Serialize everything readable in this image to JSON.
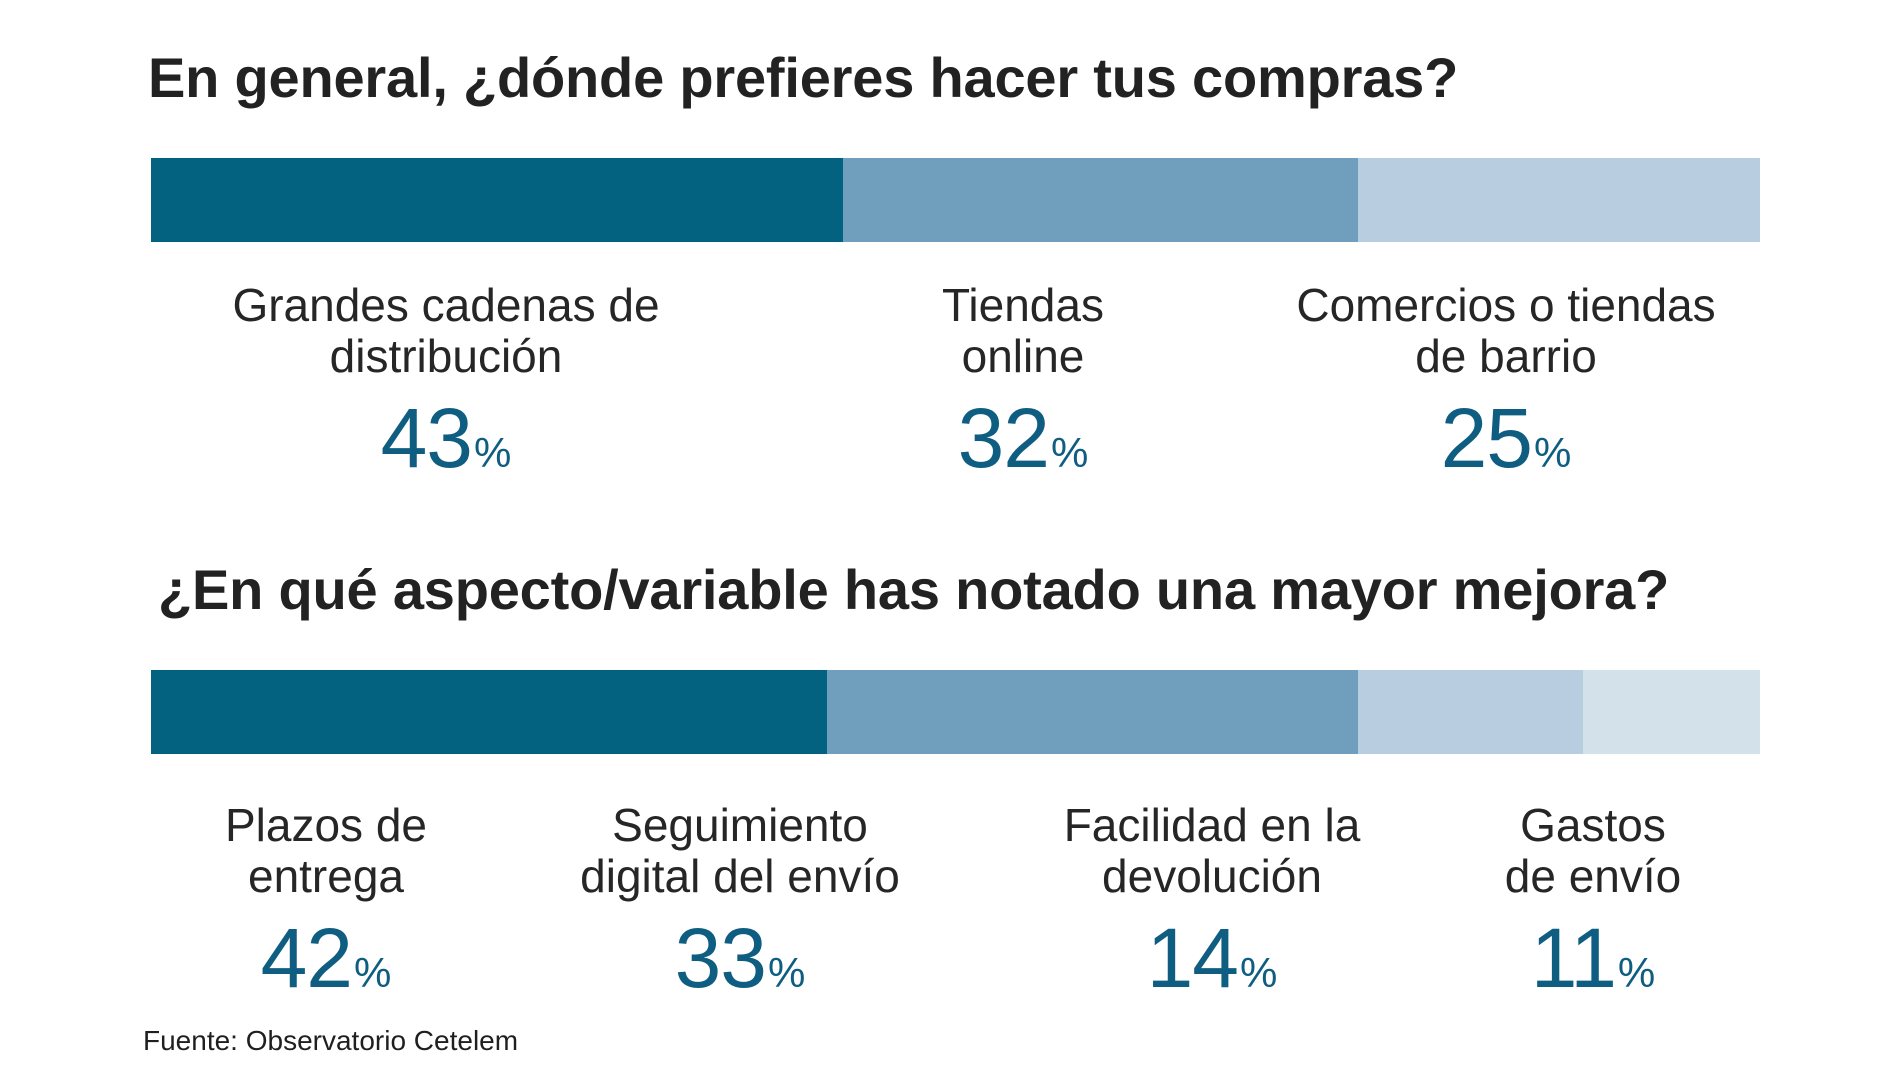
{
  "chart_data": [
    {
      "type": "bar",
      "title": "En general, ¿dónde prefieres  hacer tus compras?",
      "categories": [
        "Grandes cadenas de\ndistribución",
        "Tiendas\nonline",
        "Comercios o tiendas\nde barrio"
      ],
      "values": [
        43,
        32,
        25
      ],
      "unit": "%",
      "colors": [
        "#02627f",
        "#6f9fbd",
        "#b8cee0"
      ]
    },
    {
      "type": "bar",
      "title": "¿En qué aspecto/variable has notado una mayor mejora?",
      "categories": [
        "Plazos de\nentrega",
        "Seguimiento\ndigital del envío",
        "Facilidad en la\ndevolución",
        "Gastos\nde envío"
      ],
      "values": [
        42,
        33,
        14,
        11
      ],
      "unit": "%",
      "colors": [
        "#02627f",
        "#6f9fbd",
        "#b8cee0",
        "#d3e1eb"
      ]
    }
  ],
  "source": "Fuente: Observatorio Cetelem"
}
